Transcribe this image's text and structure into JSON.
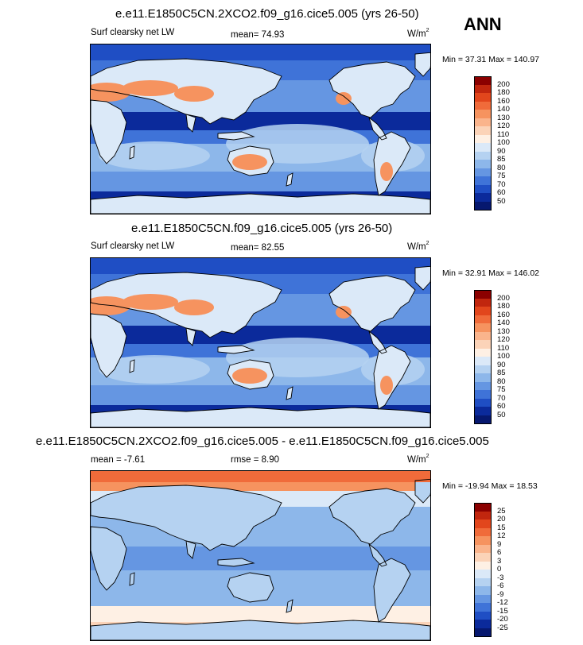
{
  "season": "ANN",
  "panels": [
    {
      "title": "e.e11.E1850C5CN.2XCO2.f09_g16.cice5.005 (yrs 26-50)",
      "left_label": "Surf clearsky net LW",
      "mean_label": "mean=  74.93",
      "units_base": "W/m",
      "units_exp": "2",
      "minmax": "Min = 37.31 Max = 140.97",
      "levels": [
        "200",
        "180",
        "160",
        "140",
        "130",
        "120",
        "110",
        "100",
        "90",
        "85",
        "80",
        "75",
        "70",
        "60",
        "50"
      ],
      "colors": [
        "#8b0000",
        "#c1260e",
        "#e2461c",
        "#f06b3a",
        "#f6935f",
        "#fab48c",
        "#fbd3b8",
        "#fef0e4",
        "#dbe9f8",
        "#b5d2f1",
        "#8db7ea",
        "#6596e2",
        "#3f73d8",
        "#1f4ec4",
        "#0b2a9b",
        "#06186f"
      ]
    },
    {
      "title": "e.e11.E1850C5CN.f09_g16.cice5.005 (yrs 26-50)",
      "left_label": "Surf clearsky net LW",
      "mean_label": "mean=  82.55",
      "units_base": "W/m",
      "units_exp": "2",
      "minmax": "Min = 32.91 Max = 146.02",
      "levels": [
        "200",
        "180",
        "160",
        "140",
        "130",
        "120",
        "110",
        "100",
        "90",
        "85",
        "80",
        "75",
        "70",
        "60",
        "50"
      ],
      "colors": [
        "#8b0000",
        "#c1260e",
        "#e2461c",
        "#f06b3a",
        "#f6935f",
        "#fab48c",
        "#fbd3b8",
        "#fef0e4",
        "#dbe9f8",
        "#b5d2f1",
        "#8db7ea",
        "#6596e2",
        "#3f73d8",
        "#1f4ec4",
        "#0b2a9b",
        "#06186f"
      ]
    },
    {
      "title": "e.e11.E1850C5CN.2XCO2.f09_g16.cice5.005 - e.e11.E1850C5CN.f09_g16.cice5.005",
      "left_label": "mean =  -7.61",
      "mean_label": "rmse =   8.90",
      "units_base": "W/m",
      "units_exp": "2",
      "minmax": "Min = -19.94 Max =  18.53",
      "levels": [
        "25",
        "20",
        "15",
        "12",
        "9",
        "6",
        "3",
        "0",
        "-3",
        "-6",
        "-9",
        "-12",
        "-15",
        "-20",
        "-25"
      ],
      "colors": [
        "#8b0000",
        "#c1260e",
        "#e2461c",
        "#f06b3a",
        "#f6935f",
        "#fab48c",
        "#fbd3b8",
        "#fef0e4",
        "#dbe9f8",
        "#b5d2f1",
        "#8db7ea",
        "#6596e2",
        "#3f73d8",
        "#1f4ec4",
        "#0b2a9b",
        "#06186f"
      ]
    }
  ]
}
